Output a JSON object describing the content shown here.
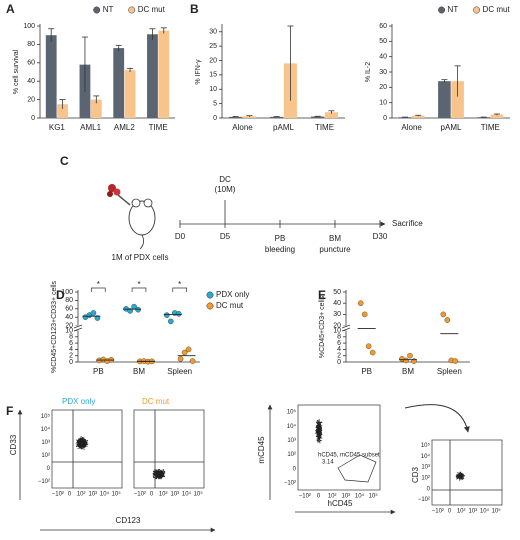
{
  "chart_data": [
    {
      "type": "bar",
      "label": "A",
      "y_label": "% cell survival",
      "categories": [
        "KG1",
        "AML1",
        "AML2",
        "TIME"
      ],
      "series": [
        {
          "name": "NT",
          "color": "#5b6471",
          "values": [
            90,
            58,
            76,
            91
          ],
          "errors": [
            7,
            30,
            3,
            6
          ]
        },
        {
          "name": "DC mut",
          "color": "#f8c48c",
          "values": [
            15,
            20,
            52,
            95
          ],
          "errors": [
            5,
            4,
            2,
            3
          ]
        }
      ],
      "ylim": [
        0,
        100
      ],
      "yticks": [
        0,
        20,
        40,
        60,
        80,
        100
      ],
      "legend": true
    },
    {
      "type": "bar",
      "label": "B",
      "y_label": "% IFN-γ",
      "categories": [
        "Alone",
        "pAML",
        "TIME"
      ],
      "series": [
        {
          "color": "#5b6471",
          "values": [
            0.4,
            0.4,
            0.5
          ],
          "errors": [
            0.1,
            0.1,
            0.1
          ]
        },
        {
          "color": "#f8c48c",
          "values": [
            0.6,
            19,
            2
          ],
          "errors": [
            0.2,
            13,
            0.5
          ]
        }
      ],
      "ylim": [
        0,
        32
      ],
      "yticks": [
        0,
        5,
        10,
        15,
        20,
        25,
        30
      ],
      "legend": false
    },
    {
      "type": "bar",
      "y_label": "% IL-2",
      "categories": [
        "Alone",
        "pAML",
        "TIME"
      ],
      "series": [
        {
          "name": "NT",
          "color": "#5b6471",
          "values": [
            0.5,
            24,
            0.5
          ],
          "errors": [
            0.1,
            1,
            0.1
          ]
        },
        {
          "name": "DC mut",
          "color": "#f8c48c",
          "values": [
            1.5,
            24,
            2.2
          ],
          "errors": [
            0.3,
            10,
            0.4
          ]
        }
      ],
      "ylim": [
        0,
        60
      ],
      "yticks": [
        0,
        10,
        20,
        30,
        40,
        50,
        60
      ],
      "legend": true
    },
    {
      "type": "dot",
      "label": "D",
      "y_label": "%CD45+CD123+CD33+ cells",
      "categories": [
        "PB",
        "BM",
        "Spleen"
      ],
      "series": [
        {
          "name": "PDX only",
          "color": "#29a9d4",
          "values": [
            [
              40,
              45,
              50,
              38
            ],
            [
              60,
              55,
              65,
              58
            ],
            [
              45,
              30,
              50,
              48
            ]
          ]
        },
        {
          "name": "DC mut",
          "color": "#f39a2b",
          "values": [
            [
              0.5,
              0.8,
              0.3,
              0.7
            ],
            [
              0.2,
              0.3,
              0.1,
              0.2
            ],
            [
              1,
              3,
              4,
              0.3
            ]
          ]
        }
      ],
      "ylim": [
        0,
        100
      ],
      "yticks": [
        0,
        2,
        4,
        6,
        8,
        10,
        20,
        40,
        60,
        80,
        100
      ],
      "ybreak": [
        10,
        20
      ],
      "annotations": [
        "*",
        "*",
        "*"
      ],
      "legend": true
    },
    {
      "type": "dot",
      "label": "E",
      "y_label": "%CD45+CD3+ cells",
      "categories": [
        "PB",
        "BM",
        "Spleen"
      ],
      "series": [
        {
          "color": "#f39a2b",
          "values": [
            [
              40,
              30,
              5,
              3
            ],
            [
              1,
              0.5,
              2,
              0.3
            ],
            [
              30,
              25,
              0.5,
              0.3
            ]
          ]
        }
      ],
      "ylim": [
        0,
        50
      ],
      "yticks": [
        0,
        2,
        4,
        6,
        8,
        10,
        20,
        30,
        40,
        50
      ],
      "ybreak": [
        10,
        20
      ],
      "legend": false
    }
  ],
  "timeline": {
    "label": "C",
    "cells": "1M of PDX cells",
    "treatment": [
      "DC",
      "(10M)"
    ],
    "days": [
      "D0",
      "D5",
      "D30"
    ],
    "events": [
      [
        "PB",
        "bleeding"
      ],
      [
        "BM",
        "puncture"
      ]
    ],
    "end": "Sacrifice"
  },
  "flow": {
    "label": "F",
    "plots": [
      {
        "title": "PDX only",
        "color": "#29a9d4"
      },
      {
        "title": "DC mut",
        "color": "#f39a2b"
      }
    ],
    "x_label": "CD123",
    "y_label": "CD33",
    "gate_x": "hCD45",
    "gate_y": "mCD45",
    "gate_name": "hCD45, mCD45 subset",
    "gate_pct": "3.14",
    "final_y": "CD3",
    "ticks": [
      "−10²",
      "0",
      "10²",
      "10³",
      "10⁴",
      "10⁵"
    ]
  }
}
